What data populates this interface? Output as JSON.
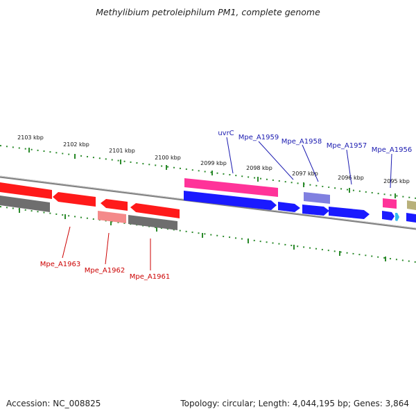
{
  "title": "Methylibium petroleiphilum PM1, complete genome",
  "footer": {
    "accession": "Accession: NC_008825",
    "summary": "Topology: circular; Length: 4,044,195 bp; Genes: 3,864"
  },
  "kbp_labels": [
    "2103 kbp",
    "2102 kbp",
    "2101 kbp",
    "2100 kbp",
    "2099 kbp",
    "2098 kbp",
    "2097 kbp",
    "2096 kbp",
    "2095 kbp"
  ],
  "gene_labels": {
    "uvrC": "uvrC",
    "a1959": "Mpe_A1959",
    "a1958": "Mpe_A1958",
    "a1957": "Mpe_A1957",
    "a1956": "Mpe_A1956",
    "a1963": "Mpe_A1963",
    "a1962": "Mpe_A1962",
    "a1961": "Mpe_A1961"
  },
  "colors": {
    "forward_gene": "#1a1aff",
    "reverse_gene": "#ff1a1a",
    "forward_label": "#1a1ab0",
    "reverse_label": "#cc0000",
    "magenta_gene": "#ff3399",
    "lavender_gene": "#8080e0",
    "gray_gene": "#6e6e6e",
    "pink_gene": "#f48a8a",
    "olive_gene": "#b8b07a",
    "cyan_gene": "#33bbee",
    "tick": "#2a8a2a",
    "backbone": "#808080"
  }
}
